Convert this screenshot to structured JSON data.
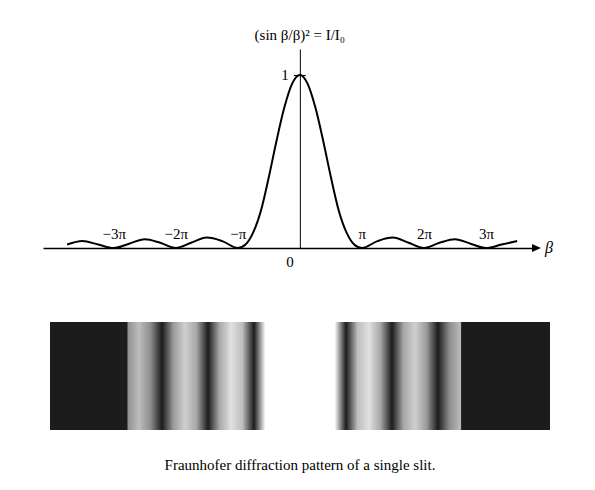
{
  "chart_data": {
    "type": "line",
    "y_label": "(sin β/β)² = I/I₀",
    "x_label": "β",
    "caption": "Fraunhofer diffraction pattern of a single slit.",
    "x": [
      -11.78,
      -11.0,
      -10.21,
      -9.42,
      -8.64,
      -7.85,
      -7.07,
      -6.28,
      -5.5,
      -4.71,
      -3.93,
      -3.14,
      -2.75,
      -2.36,
      -1.96,
      -1.57,
      -1.18,
      -0.79,
      -0.39,
      0,
      0.39,
      0.79,
      1.18,
      1.57,
      1.96,
      2.36,
      2.75,
      3.14,
      3.93,
      4.71,
      5.5,
      6.28,
      7.07,
      7.85,
      8.64,
      9.42,
      10.21,
      11.0
    ],
    "series": [
      {
        "color": "#000000",
        "values": [
          0.02,
          0.04,
          0.02,
          0,
          0.025,
          0.05,
          0.03,
          0,
          0.03,
          0.06,
          0.04,
          0,
          0.02,
          0.09,
          0.22,
          0.41,
          0.62,
          0.81,
          0.95,
          1,
          0.95,
          0.81,
          0.62,
          0.41,
          0.22,
          0.09,
          0.02,
          0,
          0.04,
          0.06,
          0.03,
          0,
          0.03,
          0.05,
          0.025,
          0,
          0.02,
          0.04
        ]
      }
    ],
    "xlim": [
      -13,
      11.8
    ],
    "ylim": [
      0,
      1.15
    ],
    "xticks": [
      {
        "value": -9.42,
        "label": "−3π"
      },
      {
        "value": -6.28,
        "label": "−2π"
      },
      {
        "value": -3.14,
        "label": "−π"
      },
      {
        "value": 3.14,
        "label": "π"
      },
      {
        "value": 6.28,
        "label": "2π"
      },
      {
        "value": 9.42,
        "label": "3π"
      }
    ],
    "yticks": [
      0,
      1
    ]
  }
}
